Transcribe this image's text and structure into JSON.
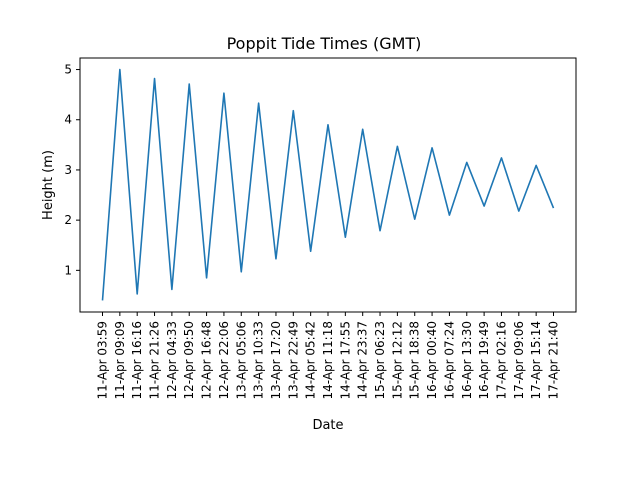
{
  "chart_data": {
    "type": "line",
    "title": "Poppit Tide Times (GMT)",
    "xlabel": "Date",
    "ylabel": "Height (m)",
    "x": [
      "11-Apr 03:59",
      "11-Apr 09:09",
      "11-Apr 16:16",
      "11-Apr 21:26",
      "12-Apr 04:33",
      "12-Apr 09:50",
      "12-Apr 16:48",
      "12-Apr 22:06",
      "13-Apr 05:06",
      "13-Apr 10:33",
      "13-Apr 17:20",
      "13-Apr 22:49",
      "14-Apr 05:42",
      "14-Apr 11:18",
      "14-Apr 17:55",
      "14-Apr 23:37",
      "15-Apr 06:23",
      "15-Apr 12:12",
      "15-Apr 18:38",
      "16-Apr 00:40",
      "16-Apr 07:24",
      "16-Apr 13:30",
      "16-Apr 19:49",
      "17-Apr 02:16",
      "17-Apr 09:06",
      "17-Apr 15:14",
      "17-Apr 21:40"
    ],
    "series": [
      {
        "values": [
          0.4,
          5.0,
          0.53,
          4.82,
          0.62,
          4.71,
          0.85,
          4.53,
          0.97,
          4.33,
          1.23,
          4.18,
          1.38,
          3.9,
          1.66,
          3.81,
          1.79,
          3.47,
          2.02,
          3.44,
          2.1,
          3.15,
          2.28,
          3.24,
          2.18,
          3.09,
          2.24
        ],
        "color": "#1f77b4"
      }
    ],
    "ylim": [
      0.17,
      5.23
    ],
    "yticks": [
      "1",
      "2",
      "3",
      "4",
      "5"
    ],
    "grid": false,
    "legend": "none"
  }
}
